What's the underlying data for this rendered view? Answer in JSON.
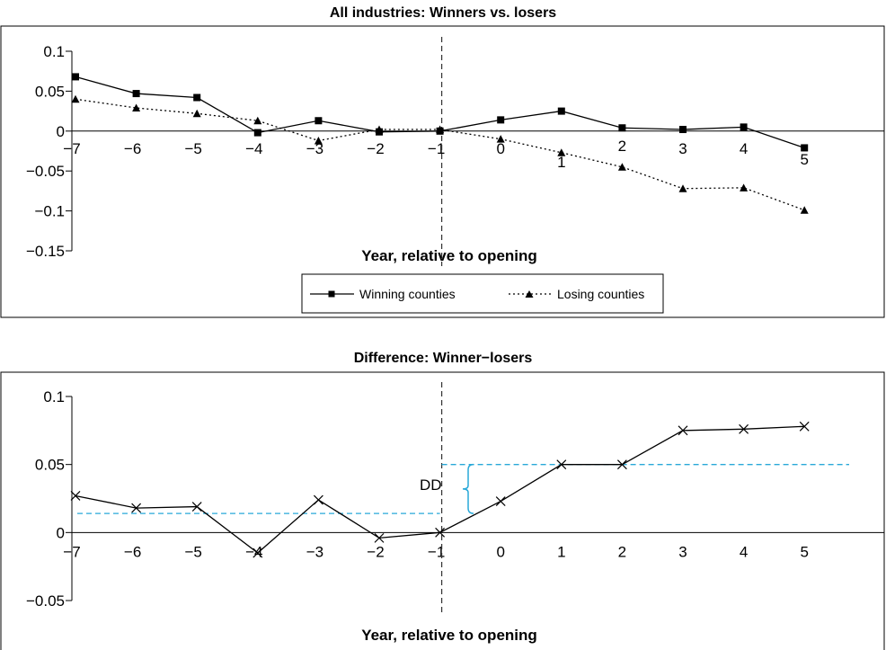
{
  "chart_data": [
    {
      "type": "line",
      "title": "All industries: Winners vs. losers",
      "xlabel": "Year, relative to opening",
      "ylabel": "",
      "x": [
        -7,
        -6,
        -5,
        -4,
        -3,
        -2,
        -1,
        0,
        1,
        2,
        3,
        4,
        5
      ],
      "x_tick_labels": [
        "−7",
        "−6",
        "−5",
        "−4",
        "−3",
        "−2",
        "−1",
        "0",
        "1",
        "2",
        "3",
        "4",
        "5"
      ],
      "ylim": [
        -0.15,
        0.1
      ],
      "y_ticks": [
        0.1,
        0.05,
        0,
        -0.05,
        -0.1,
        -0.15
      ],
      "y_tick_labels": [
        "0.1",
        "0.05",
        "0",
        "−0.05",
        "−0.1",
        "−0.15"
      ],
      "vline_x": -1,
      "legend_position": "bottom-center",
      "series": [
        {
          "name": "Winning counties",
          "style": "solid",
          "marker": "square",
          "values": [
            0.068,
            0.047,
            0.042,
            -0.002,
            0.013,
            -0.001,
            0.0,
            0.014,
            0.025,
            0.004,
            0.002,
            0.005,
            -0.021
          ]
        },
        {
          "name": "Losing counties",
          "style": "dotted",
          "marker": "triangle",
          "values": [
            0.04,
            0.029,
            0.022,
            0.013,
            -0.012,
            0.002,
            0.002,
            -0.01,
            -0.027,
            -0.045,
            -0.072,
            -0.071,
            -0.099
          ]
        }
      ]
    },
    {
      "type": "line",
      "title": "Difference: Winner−losers",
      "xlabel": "Year, relative to opening",
      "ylabel": "",
      "x": [
        -7,
        -6,
        -5,
        -4,
        -3,
        -2,
        -1,
        0,
        1,
        2,
        3,
        4,
        5
      ],
      "x_tick_labels": [
        "−7",
        "−6",
        "−5",
        "−4",
        "−3",
        "−2",
        "−1",
        "0",
        "1",
        "2",
        "3",
        "4",
        "5"
      ],
      "ylim": [
        -0.05,
        0.1
      ],
      "y_ticks": [
        0.1,
        0.05,
        0,
        -0.05
      ],
      "y_tick_labels": [
        "0.1",
        "0.05",
        "0",
        "−0.05"
      ],
      "vline_x": -1,
      "series": [
        {
          "style": "solid",
          "marker": "x",
          "values": [
            0.027,
            0.018,
            0.019,
            -0.015,
            0.024,
            -0.004,
            0.0,
            0.023,
            0.05,
            0.05,
            0.075,
            0.076,
            0.078
          ]
        }
      ],
      "reference_lines": [
        {
          "y": 0.014,
          "x_from": -7.5,
          "x_to": -1,
          "style": "dashed",
          "color": "#29a8d8"
        },
        {
          "y": 0.05,
          "x_from": -1,
          "x_to": 5,
          "style": "dashed",
          "color": "#29a8d8"
        }
      ],
      "annotation": {
        "text": "DD",
        "y_from": 0.014,
        "y_to": 0.05,
        "color": "#29a8d8"
      }
    }
  ]
}
